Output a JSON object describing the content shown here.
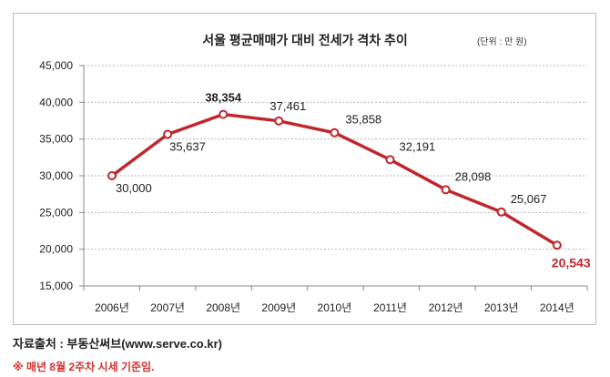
{
  "chart_data": {
    "type": "line",
    "title": "서울 평균매매가 대비 전세가 격차  추이",
    "unit_label": "(단위 : 만 원)",
    "categories": [
      "2006년",
      "2007년",
      "2008년",
      "2009년",
      "2010년",
      "2011년",
      "2012년",
      "2013년",
      "2014년"
    ],
    "series": [
      {
        "name": "격차",
        "values": [
          30000,
          35637,
          38354,
          37461,
          35858,
          32191,
          28098,
          25067,
          20543
        ],
        "color": "#c0272d"
      }
    ],
    "data_labels": [
      "30,000",
      "35,637",
      "38,354",
      "37,461",
      "35,858",
      "32,191",
      "28,098",
      "25,067",
      "20,543"
    ],
    "ylim": [
      15000,
      45000
    ],
    "yticks": [
      15000,
      20000,
      25000,
      30000,
      35000,
      40000,
      45000
    ],
    "ytick_labels": [
      "15,000",
      "20,000",
      "25,000",
      "30,000",
      "35,000",
      "40,000",
      "45,000"
    ],
    "grid": true,
    "xlabel": "",
    "ylabel": ""
  },
  "footer": {
    "source": "자료출처 : 부동산써브(www.serve.co.kr)",
    "note": "※ 매년 8월 2주차 시세 기준임."
  }
}
